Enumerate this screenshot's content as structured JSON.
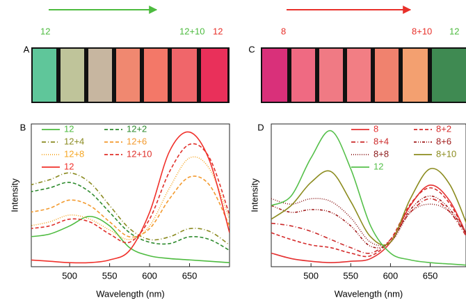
{
  "photo_panels": [
    {
      "panel": "A",
      "labels": [
        "12",
        "12+10",
        "12"
      ],
      "label_colors": [
        "#4dbb3f",
        "#4dbb3f",
        "#e8302a"
      ],
      "arrow_color": "#4dbb3f"
    },
    {
      "panel": "C",
      "labels": [
        "8",
        "8+10",
        "12"
      ],
      "label_colors": [
        "#e8302a",
        "#e8302a",
        "#4dbb3f"
      ],
      "arrow_color": "#e8302a"
    }
  ],
  "chart_data": [
    {
      "type": "line",
      "panel": "B",
      "x_label": "Wavelength (nm)",
      "y_label": "Intensity",
      "x": [
        450,
        475,
        500,
        525,
        550,
        575,
        600,
        625,
        650,
        675,
        700
      ],
      "xlim": [
        452,
        700
      ],
      "ylim": [
        0,
        1.05
      ],
      "xticks": [
        500,
        550,
        600,
        650
      ],
      "series": [
        {
          "name": "12",
          "color": "#4dbb3f",
          "dash": "none",
          "values": [
            0.22,
            0.24,
            0.3,
            0.37,
            0.3,
            0.14,
            0.08,
            0.06,
            0.05,
            0.04,
            0.03
          ]
        },
        {
          "name": "12+2",
          "color": "#2e8b2e",
          "dash": "5,3",
          "values": [
            0.55,
            0.58,
            0.62,
            0.55,
            0.4,
            0.25,
            0.18,
            0.17,
            0.22,
            0.2,
            0.12
          ]
        },
        {
          "name": "12+4",
          "color": "#8a8a20",
          "dash": "6,3,1,3",
          "values": [
            0.6,
            0.64,
            0.69,
            0.62,
            0.45,
            0.28,
            0.2,
            0.22,
            0.28,
            0.26,
            0.16
          ]
        },
        {
          "name": "12+6",
          "color": "#f39a2e",
          "dash": "5,3",
          "values": [
            0.4,
            0.43,
            0.49,
            0.45,
            0.33,
            0.22,
            0.28,
            0.5,
            0.66,
            0.6,
            0.3
          ]
        },
        {
          "name": "12+8",
          "color": "#f5a623",
          "dash": "1,2",
          "values": [
            0.3,
            0.33,
            0.38,
            0.35,
            0.27,
            0.2,
            0.3,
            0.58,
            0.8,
            0.72,
            0.35
          ]
        },
        {
          "name": "12+10",
          "color": "#e0302a",
          "dash": "5,3",
          "values": [
            0.28,
            0.3,
            0.35,
            0.33,
            0.24,
            0.18,
            0.35,
            0.7,
            0.9,
            0.8,
            0.38
          ]
        },
        {
          "name": "12",
          "color": "#f0302a",
          "dash": "none",
          "values": [
            0.05,
            0.04,
            0.03,
            0.03,
            0.05,
            0.12,
            0.4,
            0.85,
            0.99,
            0.78,
            0.25
          ]
        }
      ]
    },
    {
      "type": "line",
      "panel": "D",
      "x_label": "Wavelength (nm)",
      "y_label": "Intensity",
      "x": [
        450,
        475,
        500,
        525,
        550,
        575,
        600,
        625,
        650,
        675,
        700
      ],
      "xlim": [
        450,
        695
      ],
      "ylim": [
        0,
        1.05
      ],
      "xticks": [
        500,
        550,
        600,
        650
      ],
      "series": [
        {
          "name": "8",
          "color": "#e53030",
          "dash": "none",
          "values": [
            0.1,
            0.06,
            0.04,
            0.03,
            0.04,
            0.06,
            0.18,
            0.45,
            0.6,
            0.48,
            0.18
          ]
        },
        {
          "name": "8+2",
          "color": "#d52b2b",
          "dash": "5,3",
          "values": [
            0.25,
            0.2,
            0.16,
            0.14,
            0.1,
            0.08,
            0.2,
            0.46,
            0.58,
            0.46,
            0.18
          ]
        },
        {
          "name": "8+4",
          "color": "#cc2a2a",
          "dash": "6,3,1,3",
          "values": [
            0.32,
            0.3,
            0.26,
            0.2,
            0.14,
            0.1,
            0.2,
            0.4,
            0.5,
            0.4,
            0.18
          ]
        },
        {
          "name": "8+6",
          "color": "#a01c1c",
          "dash": "4,2,1,2,1,2",
          "values": [
            0.45,
            0.4,
            0.42,
            0.4,
            0.3,
            0.15,
            0.18,
            0.42,
            0.52,
            0.42,
            0.2
          ]
        },
        {
          "name": "8+8",
          "color": "#8b1a1a",
          "dash": "1,2",
          "values": [
            0.5,
            0.46,
            0.5,
            0.48,
            0.36,
            0.18,
            0.18,
            0.4,
            0.46,
            0.4,
            0.2
          ]
        },
        {
          "name": "8+10",
          "color": "#8b8b1e",
          "dash": "none",
          "values": [
            0.35,
            0.45,
            0.62,
            0.7,
            0.48,
            0.22,
            0.18,
            0.5,
            0.72,
            0.6,
            0.25
          ]
        },
        {
          "name": "12",
          "color": "#55c04a",
          "dash": "none",
          "values": [
            0.45,
            0.52,
            0.8,
            1.0,
            0.72,
            0.3,
            0.1,
            0.05,
            0.03,
            0.02,
            0.01
          ]
        }
      ]
    }
  ]
}
